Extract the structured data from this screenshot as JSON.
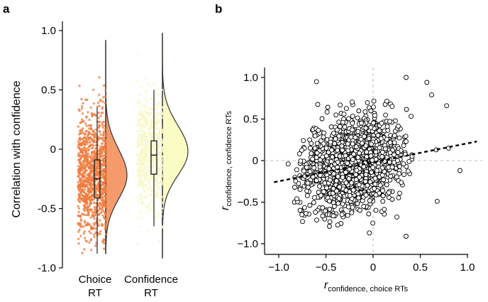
{
  "panels": {
    "a": "a",
    "b": "b"
  },
  "colors": {
    "choice_points": "#f07c3e",
    "choice_fill": "#f59b6b",
    "confidence_points": "#f7f7c8",
    "confidence_fill": "#fbfbc4",
    "outline": "#333333",
    "guide": "#bbbbbb",
    "markers": "#000000"
  },
  "chart_data": [
    {
      "panel": "a",
      "type": "violin",
      "ylabel": "Correlation with confidence",
      "ylim": [
        -1.0,
        1.0
      ],
      "yticks": [
        {
          "value": 1.0,
          "label": "1.0"
        },
        {
          "value": 0.5,
          "label": "0.5"
        },
        {
          "value": 0,
          "label": "0"
        },
        {
          "value": -0.5,
          "label": "-0.5"
        },
        {
          "value": -1.0,
          "label": "-1.0"
        }
      ],
      "categories": [
        {
          "name": "choice",
          "label": [
            "Choice",
            "RT"
          ]
        },
        {
          "name": "confidence",
          "label": [
            "Confidence",
            "RT"
          ]
        }
      ],
      "series": [
        {
          "category": "choice",
          "median": -0.25,
          "q1": -0.41,
          "q3": -0.09,
          "whisker_low": -0.88,
          "whisker_high": 0.35,
          "min": -0.88,
          "max": 0.92,
          "density_mode": -0.22
        },
        {
          "category": "confidence",
          "median": -0.05,
          "q1": -0.21,
          "q3": 0.07,
          "whisker_low": -0.65,
          "whisker_high": 0.5,
          "min": -0.92,
          "max": 0.98,
          "density_mode": -0.02
        }
      ]
    },
    {
      "panel": "b",
      "type": "scatter",
      "xlabel": "r",
      "xlabel_sub": "confidence, choice RTs",
      "ylabel": "r",
      "ylabel_sub": "confidence, confidence RTs",
      "xlim": [
        -1.0,
        1.0
      ],
      "ylim": [
        -1.0,
        1.0
      ],
      "xticks": [
        {
          "value": -1.0,
          "label": "−1.0"
        },
        {
          "value": -0.5,
          "label": "−0.5"
        },
        {
          "value": 0,
          "label": "0"
        },
        {
          "value": 0.5,
          "label": "0.5"
        },
        {
          "value": 1.0,
          "label": "1.0"
        }
      ],
      "yticks": [
        {
          "value": 1.0,
          "label": "1.0"
        },
        {
          "value": 0.5,
          "label": "0.5"
        },
        {
          "value": 0,
          "label": "0"
        },
        {
          "value": -0.5,
          "label": "−0.5"
        },
        {
          "value": -1.0,
          "label": "−1.0"
        }
      ],
      "guides": {
        "x": 0,
        "y": 0
      },
      "fit_line": {
        "x": [
          -1.05,
          1.1
        ],
        "y": [
          -0.26,
          0.23
        ]
      },
      "cloud": {
        "mean_x": -0.22,
        "mean_y": -0.05,
        "sd_x": 0.24,
        "sd_y": 0.27,
        "correlation": 0.22
      },
      "outliers": [
        {
          "x": -0.6,
          "y": 0.95
        },
        {
          "x": 0.35,
          "y": 1.0
        },
        {
          "x": 0.57,
          "y": 0.94
        },
        {
          "x": 0.62,
          "y": 0.79
        },
        {
          "x": 0.78,
          "y": 0.66
        },
        {
          "x": 0.67,
          "y": 0.13
        },
        {
          "x": 0.92,
          "y": -0.12
        },
        {
          "x": 0.35,
          "y": -0.91
        },
        {
          "x": 0.68,
          "y": -0.49
        },
        {
          "x": -0.04,
          "y": -0.87
        },
        {
          "x": -0.9,
          "y": -0.04
        },
        {
          "x": 0.8,
          "y": 0.15
        }
      ]
    }
  ]
}
